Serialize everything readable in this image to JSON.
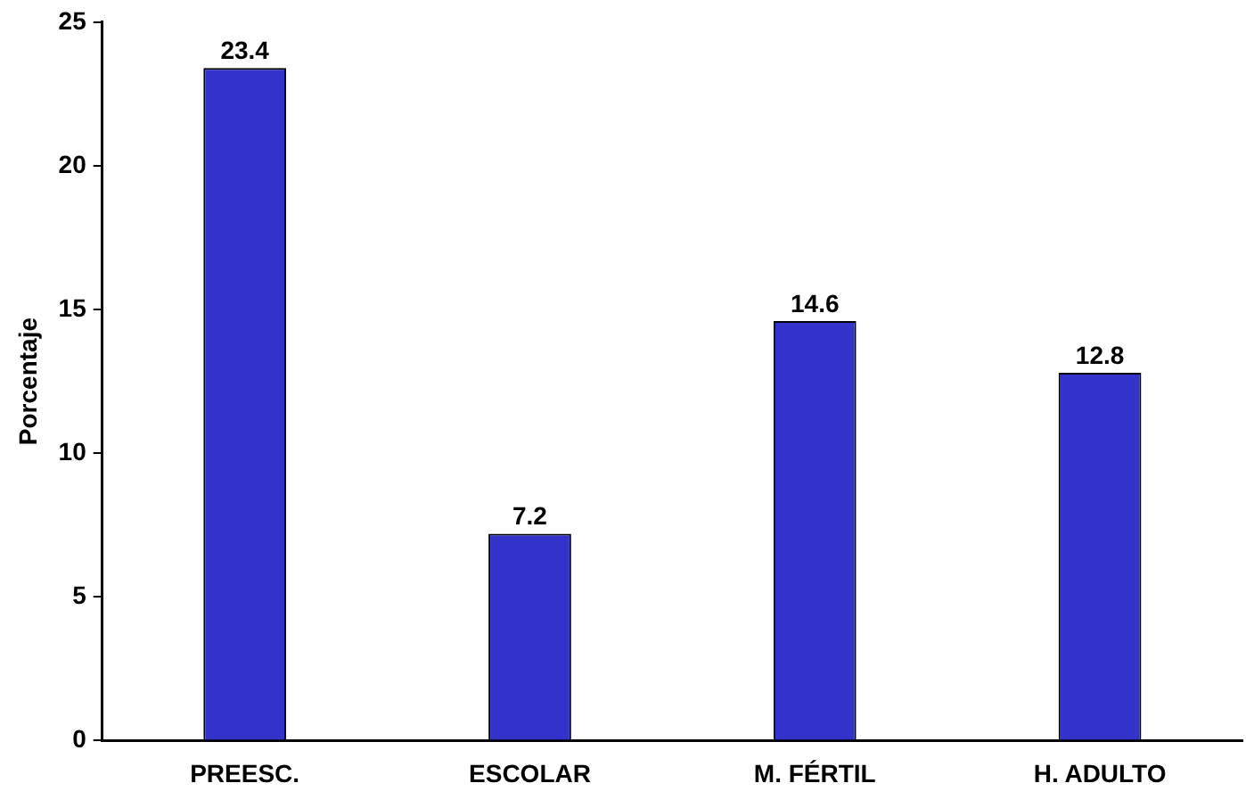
{
  "chart_data": {
    "type": "bar",
    "ylabel": "Porcentaje",
    "categories": [
      "PREESC.",
      "ESCOLAR",
      "M. FÉRTIL",
      "H. ADULTO"
    ],
    "values": [
      23.4,
      7.2,
      14.6,
      12.8
    ],
    "color": "#3333cc",
    "ylim": [
      0,
      25
    ],
    "yticks": [
      0,
      5,
      10,
      15,
      20,
      25
    ],
    "grid": false,
    "legend": false,
    "data_labels": true
  }
}
